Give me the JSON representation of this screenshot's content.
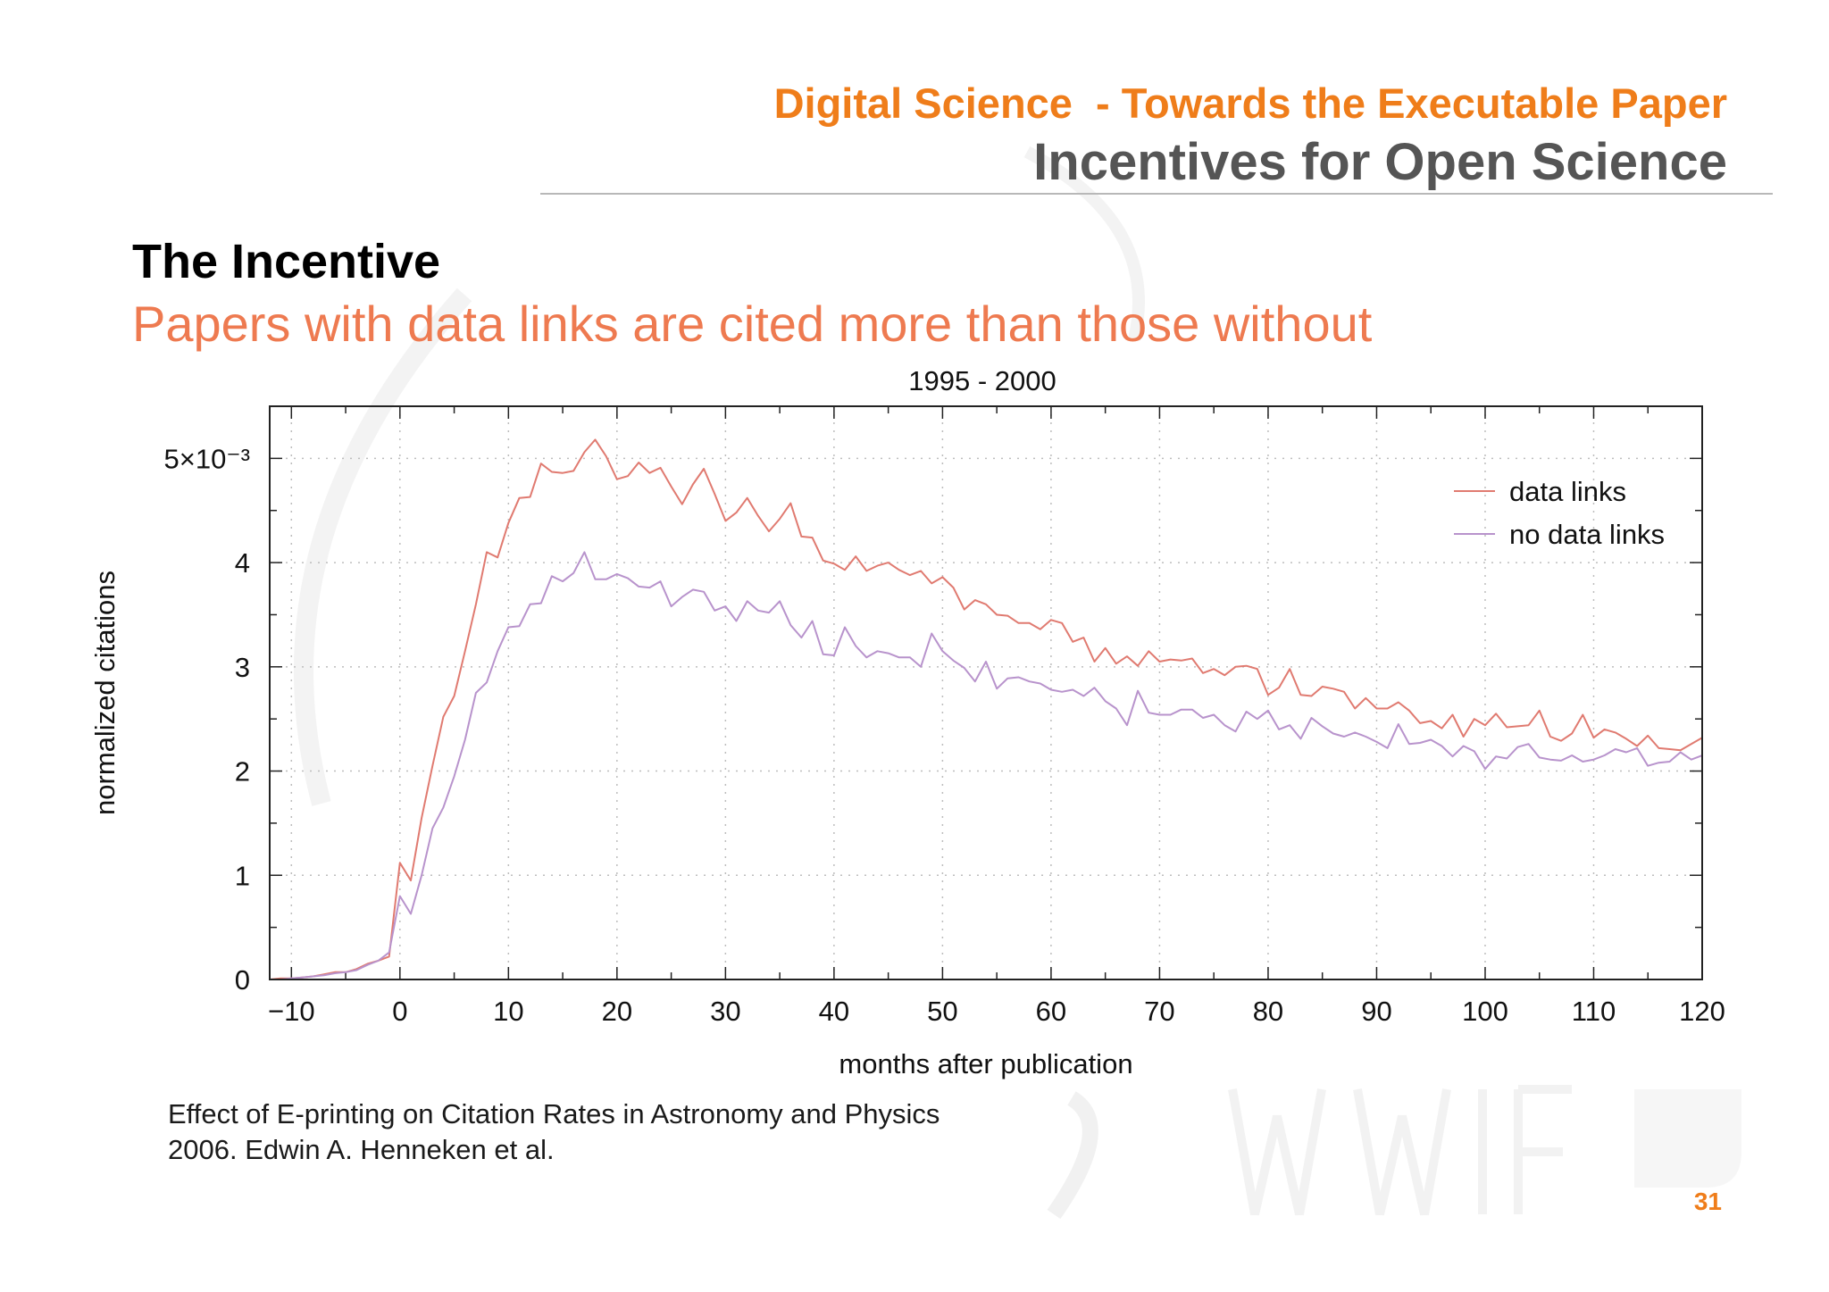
{
  "header": {
    "kicker": "Digital Science  - Towards the Executable Paper",
    "title": "Incentives for Open Science"
  },
  "section": {
    "title": "The Incentive",
    "subtitle": "Papers with data links are cited more than those without"
  },
  "citation": {
    "line1": "Effect of E-printing on Citation Rates in Astronomy and Physics",
    "line2": "2006. Edwin A. Henneken et al."
  },
  "page_number": "31",
  "colors": {
    "accent_orange": "#ef7d1a",
    "subtitle_orange": "#ee7a50",
    "data_links": "#e07a70",
    "no_data_links": "#b893cc"
  },
  "chart_data": {
    "type": "line",
    "title": "1995 - 2000",
    "xlabel": "months after publication",
    "ylabel": "normalized citations",
    "xlim": [
      -12,
      120
    ],
    "ylim": [
      0,
      5.5
    ],
    "y_unit_label": "5×10⁻³",
    "x_ticks": [
      "−10",
      "0",
      "10",
      "20",
      "30",
      "40",
      "50",
      "60",
      "70",
      "80",
      "90",
      "100",
      "110",
      "120"
    ],
    "y_ticks": [
      "0",
      "1",
      "2",
      "3",
      "4",
      "5×10⁻³"
    ],
    "grid": true,
    "legend_position": "top-right",
    "x": [
      -12,
      -11,
      -10,
      -9,
      -8,
      -7,
      -6,
      -5,
      -4,
      -3,
      -2,
      -1,
      0,
      1,
      2,
      3,
      4,
      5,
      6,
      7,
      8,
      9,
      10,
      11,
      12,
      13,
      14,
      15,
      16,
      17,
      18,
      19,
      20,
      21,
      22,
      23,
      24,
      25,
      26,
      27,
      28,
      29,
      30,
      31,
      32,
      33,
      34,
      35,
      36,
      37,
      38,
      39,
      40,
      41,
      42,
      43,
      44,
      45,
      46,
      47,
      48,
      49,
      50,
      51,
      52,
      53,
      54,
      55,
      56,
      57,
      58,
      59,
      60,
      61,
      62,
      63,
      64,
      65,
      66,
      67,
      68,
      69,
      70,
      71,
      72,
      73,
      74,
      75,
      76,
      77,
      78,
      79,
      80,
      81,
      82,
      83,
      84,
      85,
      86,
      87,
      88,
      89,
      90,
      91,
      92,
      93,
      94,
      95,
      96,
      97,
      98,
      99,
      100,
      101,
      102,
      103,
      104,
      105,
      106,
      107,
      108,
      109,
      110,
      111,
      112,
      113,
      114,
      115,
      116,
      117,
      118,
      119,
      120
    ],
    "series": [
      {
        "name": "data links",
        "color": "#e07a70",
        "values": [
          0.0,
          0.01,
          0.01,
          0.02,
          0.03,
          0.05,
          0.07,
          0.07,
          0.1,
          0.15,
          0.18,
          0.22,
          1.12,
          0.95,
          1.55,
          2.05,
          2.52,
          2.72,
          3.15,
          3.6,
          4.1,
          4.05,
          4.38,
          4.62,
          4.63,
          4.95,
          4.87,
          4.86,
          4.88,
          5.06,
          5.18,
          5.02,
          4.8,
          4.83,
          4.96,
          4.86,
          4.91,
          4.73,
          4.56,
          4.75,
          4.9,
          4.66,
          4.4,
          4.48,
          4.62,
          4.45,
          4.3,
          4.42,
          4.57,
          4.25,
          4.24,
          4.02,
          3.99,
          3.93,
          4.06,
          3.92,
          3.97,
          4.0,
          3.93,
          3.88,
          3.92,
          3.8,
          3.86,
          3.76,
          3.55,
          3.64,
          3.6,
          3.5,
          3.49,
          3.42,
          3.42,
          3.36,
          3.45,
          3.42,
          3.24,
          3.28,
          3.05,
          3.18,
          3.03,
          3.1,
          3.01,
          3.15,
          3.05,
          3.07,
          3.06,
          3.08,
          2.94,
          2.98,
          2.92,
          3.0,
          3.01,
          2.98,
          2.73,
          2.8,
          2.98,
          2.73,
          2.72,
          2.81,
          2.79,
          2.76,
          2.6,
          2.7,
          2.6,
          2.6,
          2.66,
          2.58,
          2.46,
          2.48,
          2.41,
          2.54,
          2.33,
          2.5,
          2.44,
          2.55,
          2.42,
          2.43,
          2.44,
          2.58,
          2.33,
          2.29,
          2.36,
          2.54,
          2.32,
          2.4,
          2.37,
          2.31,
          2.24,
          2.34,
          2.22,
          2.21,
          2.2,
          2.26,
          2.32
        ]
      },
      {
        "name": "no data links",
        "color": "#b893cc",
        "values": [
          0.0,
          0.0,
          0.01,
          0.02,
          0.03,
          0.04,
          0.06,
          0.07,
          0.09,
          0.14,
          0.18,
          0.26,
          0.8,
          0.63,
          1.0,
          1.45,
          1.65,
          1.95,
          2.3,
          2.75,
          2.85,
          3.15,
          3.38,
          3.39,
          3.6,
          3.61,
          3.87,
          3.82,
          3.9,
          4.1,
          3.84,
          3.84,
          3.89,
          3.85,
          3.77,
          3.76,
          3.82,
          3.58,
          3.67,
          3.74,
          3.72,
          3.54,
          3.58,
          3.44,
          3.63,
          3.54,
          3.52,
          3.63,
          3.4,
          3.28,
          3.44,
          3.12,
          3.11,
          3.38,
          3.2,
          3.09,
          3.15,
          3.13,
          3.09,
          3.09,
          3.0,
          3.32,
          3.15,
          3.06,
          2.99,
          2.86,
          3.05,
          2.79,
          2.89,
          2.9,
          2.86,
          2.84,
          2.78,
          2.76,
          2.78,
          2.72,
          2.8,
          2.67,
          2.6,
          2.44,
          2.77,
          2.56,
          2.54,
          2.54,
          2.59,
          2.59,
          2.51,
          2.54,
          2.44,
          2.38,
          2.57,
          2.5,
          2.58,
          2.4,
          2.44,
          2.31,
          2.51,
          2.43,
          2.36,
          2.33,
          2.37,
          2.33,
          2.28,
          2.22,
          2.45,
          2.26,
          2.27,
          2.3,
          2.24,
          2.14,
          2.24,
          2.19,
          2.02,
          2.14,
          2.12,
          2.23,
          2.26,
          2.13,
          2.11,
          2.1,
          2.15,
          2.09,
          2.11,
          2.15,
          2.21,
          2.18,
          2.22,
          2.05,
          2.08,
          2.09,
          2.18,
          2.11,
          2.15
        ]
      }
    ]
  }
}
